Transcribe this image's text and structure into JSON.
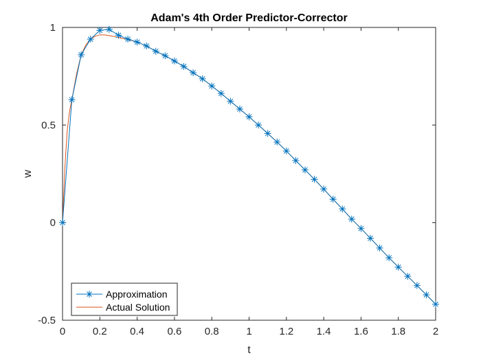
{
  "chart_data": {
    "type": "line",
    "title": "Adam's 4th Order Predictor-Corrector",
    "xlabel": "t",
    "ylabel": "w",
    "xlim": [
      0,
      2
    ],
    "ylim": [
      -0.5,
      1
    ],
    "x_ticks": [
      "0",
      "0.2",
      "0.4",
      "0.6",
      "0.8",
      "1",
      "1.2",
      "1.4",
      "1.6",
      "1.8",
      "2"
    ],
    "y_ticks": [
      "-0.5",
      "0",
      "0.5",
      "1"
    ],
    "grid": false,
    "legend_position": "bottom-left",
    "series": [
      {
        "name": "Approximation",
        "color": "#0072BD",
        "marker": "asterisk",
        "x": [
          0,
          0.05,
          0.1,
          0.15,
          0.2,
          0.25,
          0.3,
          0.35,
          0.4,
          0.45,
          0.5,
          0.55,
          0.6,
          0.65,
          0.7,
          0.75,
          0.8,
          0.85,
          0.9,
          0.95,
          1.0,
          1.05,
          1.1,
          1.15,
          1.2,
          1.25,
          1.3,
          1.35,
          1.4,
          1.45,
          1.5,
          1.55,
          1.6,
          1.65,
          1.7,
          1.75,
          1.8,
          1.85,
          1.9,
          1.95,
          2.0
        ],
        "y": [
          0,
          0.63,
          0.86,
          0.94,
          0.985,
          0.99,
          0.96,
          0.94,
          0.925,
          0.905,
          0.878,
          0.855,
          0.828,
          0.8,
          0.768,
          0.737,
          0.7,
          0.662,
          0.622,
          0.582,
          0.542,
          0.5,
          0.457,
          0.413,
          0.367,
          0.318,
          0.27,
          0.222,
          0.172,
          0.12,
          0.07,
          0.018,
          -0.03,
          -0.08,
          -0.13,
          -0.18,
          -0.228,
          -0.275,
          -0.322,
          -0.37,
          -0.418
        ]
      },
      {
        "name": "Actual Solution",
        "color": "#D95319",
        "marker": "none",
        "x": [
          0,
          0.0125,
          0.025,
          0.0375,
          0.05,
          0.075,
          0.1,
          0.125,
          0.15,
          0.175,
          0.2,
          0.225,
          0.25,
          0.275,
          0.3,
          0.35,
          0.4,
          0.45,
          0.5,
          0.55,
          0.6,
          0.65,
          0.7,
          0.75,
          0.8,
          0.85,
          0.9,
          0.95,
          1.0,
          1.05,
          1.1,
          1.15,
          1.2,
          1.25,
          1.3,
          1.35,
          1.4,
          1.45,
          1.5,
          1.55,
          1.6,
          1.65,
          1.7,
          1.75,
          1.8,
          1.85,
          1.9,
          1.95,
          2.0
        ],
        "y": [
          0,
          0.28,
          0.47,
          0.57,
          0.63,
          0.76,
          0.86,
          0.91,
          0.94,
          0.955,
          0.962,
          0.962,
          0.958,
          0.954,
          0.948,
          0.938,
          0.925,
          0.905,
          0.878,
          0.855,
          0.828,
          0.8,
          0.768,
          0.737,
          0.7,
          0.662,
          0.622,
          0.582,
          0.542,
          0.5,
          0.457,
          0.413,
          0.367,
          0.318,
          0.27,
          0.222,
          0.172,
          0.12,
          0.07,
          0.018,
          -0.03,
          -0.08,
          -0.13,
          -0.18,
          -0.228,
          -0.275,
          -0.322,
          -0.37,
          -0.418
        ]
      }
    ]
  }
}
